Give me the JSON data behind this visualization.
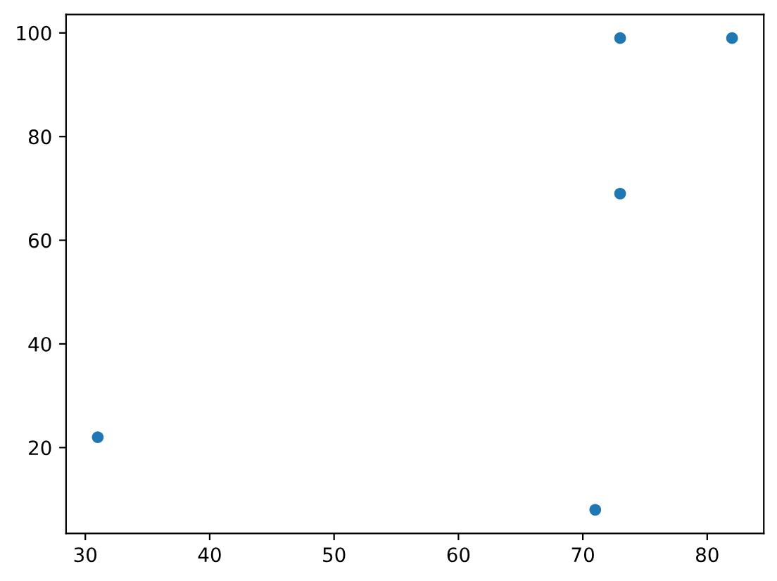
{
  "chart_data": {
    "type": "scatter",
    "x": [
      73,
      82,
      73,
      31,
      71
    ],
    "values": [
      99,
      99,
      69,
      22,
      8
    ],
    "color": "#1f77b4",
    "marker": "circle",
    "xlim": [
      28.45,
      84.55
    ],
    "ylim": [
      3.45,
      103.55
    ],
    "xticks": [
      30,
      40,
      50,
      60,
      70,
      80
    ],
    "yticks": [
      20,
      40,
      60,
      80,
      100
    ],
    "grid": false
  }
}
